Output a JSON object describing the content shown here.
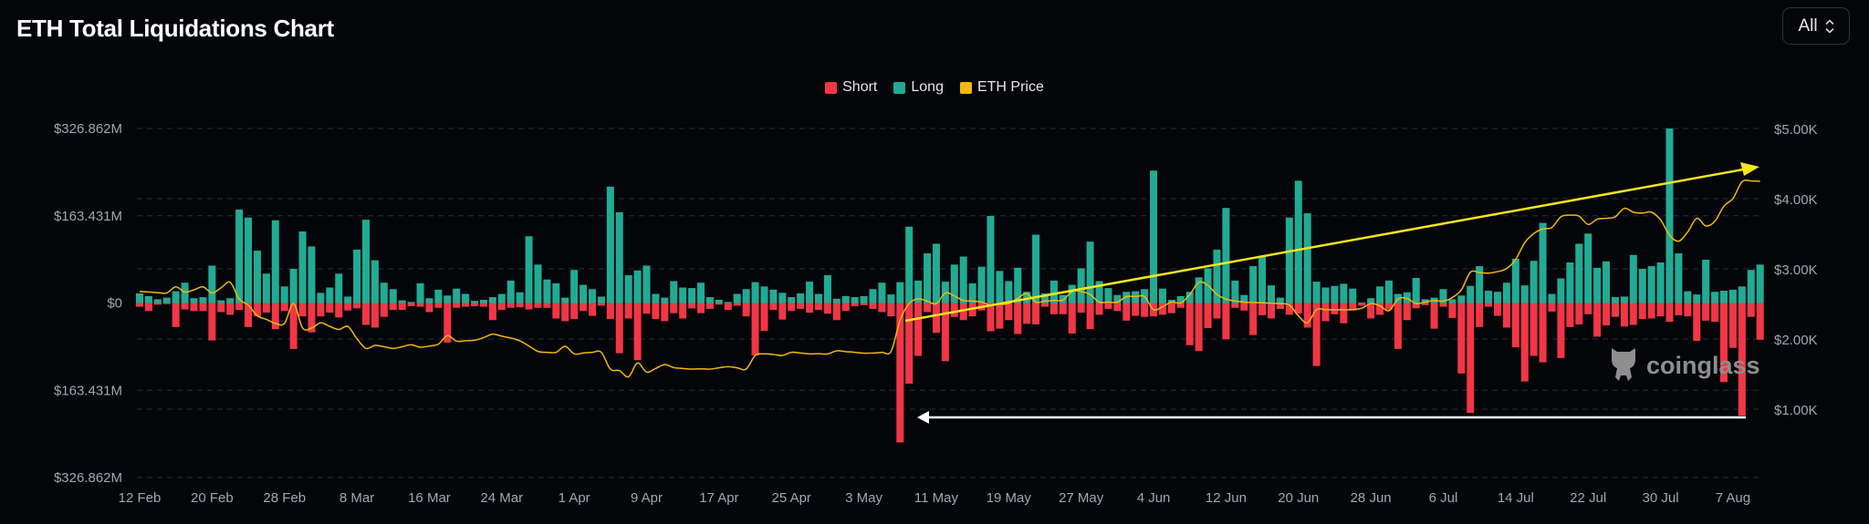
{
  "header": {
    "title": "ETH Total Liquidations Chart",
    "range_selector": {
      "selected": "All",
      "icon": "chevron-up-down-icon"
    }
  },
  "legend": [
    {
      "label": "Short",
      "color": "#f23645"
    },
    {
      "label": "Long",
      "color": "#22ab94"
    },
    {
      "label": "ETH Price",
      "color": "#f0b90b"
    }
  ],
  "watermark": {
    "text": "coinglass",
    "icon": "coinglass-mascot-icon"
  },
  "chart_data": {
    "type": "bar",
    "title": "ETH Total Liquidations Chart",
    "grid": true,
    "legend_placement": "top-center",
    "interval": "daily",
    "x_ticks": [
      "12 Feb",
      "20 Feb",
      "28 Feb",
      "8 Mar",
      "16 Mar",
      "24 Mar",
      "1 Apr",
      "9 Apr",
      "17 Apr",
      "25 Apr",
      "3 May",
      "11 May",
      "19 May",
      "27 May",
      "4 Jun",
      "12 Jun",
      "20 Jun",
      "28 Jun",
      "6 Jul",
      "14 Jul",
      "22 Jul",
      "30 Jul",
      "7 Aug"
    ],
    "y_left": {
      "ticks": [
        "$326.862M",
        "$163.431M",
        "$0",
        "$163.431M",
        "$326.862M"
      ],
      "range_musd": [
        -326.862,
        326.862
      ]
    },
    "y_right": {
      "ticks": [
        "$5.00K",
        "$4.00K",
        "$3.00K",
        "$2.00K",
        "$1.00K"
      ],
      "range_usd": [
        0,
        5000
      ]
    },
    "series": [
      {
        "name": "Long",
        "unit": "M USD",
        "color": "#22ab94",
        "values": [
          18,
          13,
          7,
          10,
          22,
          38,
          9,
          11,
          70,
          5,
          9,
          175,
          160,
          98,
          55,
          155,
          31,
          64,
          134,
          106,
          19,
          29,
          55,
          12,
          100,
          156,
          80,
          38,
          26,
          5,
          2,
          37,
          9,
          25,
          14,
          27,
          17,
          4,
          6,
          11,
          17,
          42,
          20,
          125,
          72,
          44,
          37,
          10,
          62,
          34,
          26,
          12,
          218,
          170,
          52,
          61,
          70,
          17,
          10,
          41,
          29,
          28,
          38,
          11,
          6,
          2,
          17,
          26,
          39,
          31,
          25,
          19,
          11,
          18,
          40,
          17,
          52,
          8,
          13,
          11,
          13,
          26,
          38,
          16,
          39,
          143,
          42,
          93,
          111,
          40,
          72,
          87,
          37,
          68,
          163,
          60,
          41,
          66,
          21,
          128,
          18,
          42,
          15,
          34,
          65,
          115,
          41,
          28,
          15,
          21,
          22,
          26,
          248,
          27,
          6,
          13,
          21,
          48,
          65,
          100,
          178,
          42,
          15,
          69,
          89,
          33,
          10,
          160,
          229,
          168,
          40,
          29,
          32,
          36,
          27,
          1,
          9,
          31,
          42,
          17,
          20,
          47,
          7,
          10,
          26,
          7,
          14,
          32,
          69,
          23,
          21,
          38,
          83,
          33,
          79,
          150,
          17,
          46,
          76,
          111,
          130,
          66,
          78,
          11,
          12,
          90,
          64,
          69,
          76,
          326.862,
          93,
          22,
          16,
          81,
          21,
          23,
          25,
          31,
          62,
          72
        ]
      },
      {
        "name": "Short",
        "unit": "M USD",
        "color": "#f23645",
        "values": [
          7,
          15,
          3,
          2,
          45,
          12,
          15,
          15,
          70,
          17,
          22,
          13,
          45,
          25,
          18,
          49,
          15,
          86,
          25,
          55,
          25,
          18,
          27,
          14,
          10,
          41,
          46,
          26,
          13,
          13,
          6,
          7,
          17,
          9,
          74,
          9,
          7,
          6,
          7,
          32,
          13,
          9,
          8,
          12,
          9,
          9,
          29,
          34,
          30,
          15,
          24,
          5,
          30,
          94,
          29,
          107,
          20,
          30,
          34,
          19,
          29,
          10,
          19,
          11,
          3,
          13,
          5,
          25,
          98,
          52,
          13,
          31,
          15,
          11,
          18,
          13,
          20,
          32,
          15,
          6,
          4,
          11,
          17,
          25,
          261,
          151,
          99,
          17,
          56,
          109,
          26,
          32,
          25,
          14,
          53,
          48,
          32,
          58,
          39,
          40,
          7,
          21,
          21,
          57,
          18,
          49,
          22,
          11,
          15,
          33,
          24,
          26,
          25,
          22,
          19,
          9,
          79,
          90,
          47,
          29,
          68,
          9,
          14,
          60,
          23,
          29,
          11,
          22,
          20,
          46,
          118,
          34,
          21,
          38,
          14,
          5,
          29,
          22,
          12,
          86,
          32,
          10,
          4,
          48,
          7,
          28,
          132,
          206,
          45,
          7,
          24,
          46,
          83,
          147,
          99,
          111,
          16,
          103,
          45,
          40,
          21,
          63,
          42,
          26,
          44,
          41,
          30,
          29,
          25,
          35,
          23,
          25,
          71,
          33,
          35,
          148,
          84,
          211,
          26,
          69
        ]
      },
      {
        "name": "ETH Price",
        "unit": "USD",
        "color": "#f0b90b",
        "values": [
          2677,
          2670,
          2660,
          2656,
          2743,
          2670,
          2700,
          2743,
          2656,
          2730,
          2808,
          2570,
          2483,
          2331,
          2280,
          2222,
          2222,
          2504,
          2157,
          2157,
          2231,
          2180,
          2135,
          2179,
          2005,
          1866,
          1909,
          1890,
          1866,
          1890,
          1918,
          1883,
          1900,
          1927,
          2048,
          1970,
          1975,
          1983,
          2020,
          2070,
          2040,
          2014,
          1975,
          1900,
          1823,
          1810,
          1810,
          1896,
          1788,
          1800,
          1810,
          1810,
          1571,
          1549,
          1462,
          1658,
          1528,
          1580,
          1636,
          1593,
          1580,
          1571,
          1575,
          1571,
          1590,
          1605,
          1590,
          1571,
          1766,
          1788,
          1780,
          1766,
          1810,
          1800,
          1788,
          1790,
          1788,
          1831,
          1820,
          1810,
          1797,
          1800,
          1810,
          1823,
          2266,
          2504,
          2570,
          2540,
          2504,
          2656,
          2613,
          2548,
          2540,
          2526,
          2483,
          2495,
          2504,
          2580,
          2648,
          2526,
          2540,
          2548,
          2556,
          2677,
          2677,
          2634,
          2526,
          2526,
          2526,
          2604,
          2604,
          2604,
          2418,
          2461,
          2526,
          2513,
          2634,
          2808,
          2765,
          2634,
          2570,
          2540,
          2526,
          2520,
          2517,
          2510,
          2504,
          2483,
          2331,
          2231,
          2418,
          2418,
          2418,
          2418,
          2418,
          2439,
          2504,
          2474,
          2404,
          2570,
          2578,
          2504,
          2526,
          2548,
          2539,
          2591,
          2700,
          2952,
          2947,
          2939,
          2960,
          3004,
          3134,
          3373,
          3503,
          3568,
          3590,
          3742,
          3764,
          3751,
          3633,
          3707,
          3720,
          3742,
          3863,
          3807,
          3794,
          3807,
          3698,
          3481,
          3394,
          3525,
          3720,
          3612,
          3677,
          3894,
          4002,
          4241,
          4254,
          4246
        ]
      }
    ],
    "annotations": [
      {
        "type": "arrow",
        "color": "#f5e61a",
        "direction": "up-right",
        "from_date": "8 May",
        "to_date": "10 Aug"
      },
      {
        "type": "arrow",
        "color": "#ffffff",
        "direction": "left",
        "from_date": "9 Aug",
        "to_date": "9 May"
      }
    ]
  }
}
